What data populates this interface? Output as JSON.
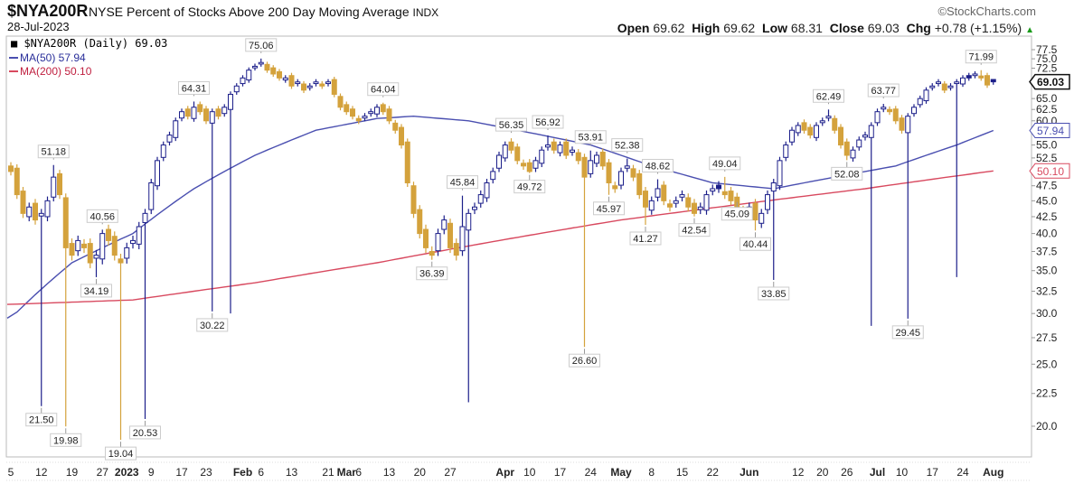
{
  "header": {
    "symbol": "$NYA200R",
    "description": "NYSE Percent of Stocks Above 200 Day Moving Average",
    "exchange": "INDX",
    "date": "28-Jul-2023",
    "brand": "©StockCharts.com",
    "open_label": "Open",
    "open": "69.62",
    "high_label": "High",
    "high": "69.62",
    "low_label": "Low",
    "low": "68.31",
    "close_label": "Close",
    "close": "69.03",
    "chg_label": "Chg",
    "chg": "+0.78 (+1.15%)"
  },
  "legend": {
    "main": "$NYA200R (Daily) 69.03",
    "ma50": "MA(50) 57.94",
    "ma200": "MA(200) 50.10"
  },
  "colors": {
    "up": "#1c1f8a",
    "down": "#d4a23c",
    "ma50": "#4a4fb0",
    "ma200": "#d8495f"
  },
  "chart_data": {
    "type": "candlestick",
    "title": "$NYA200R NYSE Percent of Stocks Above 200 Day Moving Average",
    "yscale": "log",
    "ylim": [
      18.5,
      79
    ],
    "yticks": [
      "77.5",
      "75.0",
      "72.5",
      "65.0",
      "62.5",
      "60.0",
      "55.0",
      "52.5",
      "47.5",
      "45.0",
      "42.5",
      "40.0",
      "37.5",
      "35.0",
      "32.5",
      "30.0",
      "27.5",
      "25.0",
      "22.5",
      "20.0"
    ],
    "xticks": [
      {
        "label": "5",
        "i": 0
      },
      {
        "label": "12",
        "i": 5
      },
      {
        "label": "19",
        "i": 10
      },
      {
        "label": "27",
        "i": 15
      },
      {
        "label": "2023",
        "i": 19,
        "bold": true
      },
      {
        "label": "9",
        "i": 23
      },
      {
        "label": "17",
        "i": 28
      },
      {
        "label": "23",
        "i": 32
      },
      {
        "label": "Feb",
        "i": 38,
        "bold": true
      },
      {
        "label": "6",
        "i": 41
      },
      {
        "label": "13",
        "i": 46
      },
      {
        "label": "21",
        "i": 52
      },
      {
        "label": "Mar",
        "i": 55,
        "bold": true
      },
      {
        "label": "6",
        "i": 57
      },
      {
        "label": "13",
        "i": 62
      },
      {
        "label": "20",
        "i": 67
      },
      {
        "label": "27",
        "i": 72
      },
      {
        "label": "Apr",
        "i": 81,
        "bold": true
      },
      {
        "label": "10",
        "i": 85
      },
      {
        "label": "17",
        "i": 90
      },
      {
        "label": "24",
        "i": 95
      },
      {
        "label": "May",
        "i": 100,
        "bold": true
      },
      {
        "label": "8",
        "i": 105
      },
      {
        "label": "15",
        "i": 110
      },
      {
        "label": "22",
        "i": 115
      },
      {
        "label": "Jun",
        "i": 121,
        "bold": true
      },
      {
        "label": "12",
        "i": 129
      },
      {
        "label": "20",
        "i": 133
      },
      {
        "label": "26",
        "i": 137
      },
      {
        "label": "Jul",
        "i": 142,
        "bold": true
      },
      {
        "label": "10",
        "i": 146
      },
      {
        "label": "17",
        "i": 151
      },
      {
        "label": "24",
        "i": 156
      },
      {
        "label": "Aug",
        "i": 161,
        "bold": true
      }
    ],
    "first_open": 51.0,
    "closes": [
      50,
      46,
      43,
      44,
      42,
      43,
      45,
      49,
      46,
      38,
      37,
      39,
      38,
      36,
      37,
      40,
      39,
      37,
      36,
      38,
      39,
      41,
      43,
      48,
      52,
      55,
      57,
      60,
      62,
      61,
      63,
      62,
      60,
      62,
      61,
      63,
      66,
      68,
      70,
      72,
      73,
      74,
      72,
      71,
      70,
      70,
      68,
      69,
      67,
      68,
      69,
      68,
      69,
      66,
      63,
      62,
      61,
      60,
      61,
      62,
      63,
      62,
      60,
      58,
      55,
      48,
      43,
      40,
      38,
      37,
      40,
      42,
      38,
      37,
      41,
      43,
      44,
      46,
      48,
      50,
      53,
      55,
      54,
      52,
      51,
      50,
      52,
      54,
      55,
      54,
      55,
      53,
      54,
      52,
      49,
      52,
      53,
      51,
      48,
      47,
      50,
      51,
      49,
      46,
      44,
      45,
      47,
      45,
      44,
      45,
      46,
      44,
      43,
      44,
      46,
      47,
      47,
      46,
      45,
      44,
      43,
      44,
      42,
      43,
      46,
      48,
      52,
      55,
      58,
      59,
      58,
      57,
      59,
      60,
      61,
      58,
      55,
      53,
      54,
      56,
      57,
      59,
      62,
      63,
      62,
      60,
      58,
      61,
      63,
      65,
      67,
      68,
      69,
      67,
      68,
      69,
      70,
      70,
      71,
      70,
      68.25,
      69.03
    ],
    "last_candle": {
      "open": 69.62,
      "high": 69.62,
      "low": 68.31,
      "close": 69.03
    },
    "extremes": [
      {
        "i": 7,
        "type": "high",
        "value": "51.18"
      },
      {
        "i": 5,
        "type": "low",
        "value": "21.50"
      },
      {
        "i": 9,
        "type": "low",
        "value": "19.98"
      },
      {
        "i": 14,
        "type": "low",
        "value": "34.19"
      },
      {
        "i": 15,
        "type": "high",
        "value": "40.56"
      },
      {
        "i": 18,
        "type": "low",
        "value": "19.04"
      },
      {
        "i": 22,
        "type": "low",
        "value": "20.53"
      },
      {
        "i": 30,
        "type": "high",
        "value": "64.31"
      },
      {
        "i": 33,
        "type": "low",
        "value": "30.22"
      },
      {
        "i": 41,
        "type": "high",
        "value": "75.06"
      },
      {
        "i": 61,
        "type": "high",
        "value": "64.04"
      },
      {
        "i": 69,
        "type": "low",
        "value": "36.39"
      },
      {
        "i": 74,
        "type": "high",
        "value": "45.84"
      },
      {
        "i": 82,
        "type": "high",
        "value": "56.35"
      },
      {
        "i": 85,
        "type": "low",
        "value": "49.72"
      },
      {
        "i": 88,
        "type": "high",
        "value": "56.92"
      },
      {
        "i": 95,
        "type": "high",
        "value": "53.91"
      },
      {
        "i": 94,
        "type": "low",
        "value": "26.60"
      },
      {
        "i": 101,
        "type": "high",
        "value": "52.38"
      },
      {
        "i": 98,
        "type": "low",
        "value": "45.97"
      },
      {
        "i": 106,
        "type": "high",
        "value": "48.62"
      },
      {
        "i": 104,
        "type": "low",
        "value": "41.27"
      },
      {
        "i": 112,
        "type": "low",
        "value": "42.54"
      },
      {
        "i": 117,
        "type": "high",
        "value": "49.04"
      },
      {
        "i": 119,
        "type": "low",
        "value": "45.09"
      },
      {
        "i": 122,
        "type": "low",
        "value": "40.44"
      },
      {
        "i": 125,
        "type": "low",
        "value": "33.85"
      },
      {
        "i": 134,
        "type": "high",
        "value": "62.49"
      },
      {
        "i": 137,
        "type": "low",
        "value": "52.08"
      },
      {
        "i": 143,
        "type": "high",
        "value": "63.77"
      },
      {
        "i": 147,
        "type": "low",
        "value": "29.45"
      },
      {
        "i": 159,
        "type": "high",
        "value": "71.99"
      }
    ],
    "extra_wicks": [
      {
        "i": 75,
        "low": 21.8
      },
      {
        "i": 36,
        "low": 30.0
      },
      {
        "i": 141,
        "low": 28.7
      },
      {
        "i": 155,
        "low": 34.2
      }
    ],
    "ma50": [
      [
        0,
        29.5
      ],
      [
        10,
        36
      ],
      [
        20,
        40
      ],
      [
        30,
        47
      ],
      [
        40,
        53
      ],
      [
        50,
        58
      ],
      [
        60,
        60.5
      ],
      [
        66,
        61
      ],
      [
        75,
        60
      ],
      [
        85,
        57.5
      ],
      [
        95,
        55
      ],
      [
        105,
        51
      ],
      [
        115,
        48
      ],
      [
        125,
        47
      ],
      [
        135,
        49
      ],
      [
        145,
        51
      ],
      [
        155,
        55
      ],
      [
        161,
        57.94
      ]
    ],
    "ma200": [
      [
        0,
        31
      ],
      [
        20,
        31.5
      ],
      [
        40,
        33.5
      ],
      [
        60,
        36
      ],
      [
        80,
        39
      ],
      [
        100,
        42
      ],
      [
        120,
        44.5
      ],
      [
        140,
        47
      ],
      [
        161,
        50.1
      ]
    ],
    "price_tags": {
      "close": "69.03",
      "ma50": "57.94",
      "ma200": "50.10"
    }
  }
}
